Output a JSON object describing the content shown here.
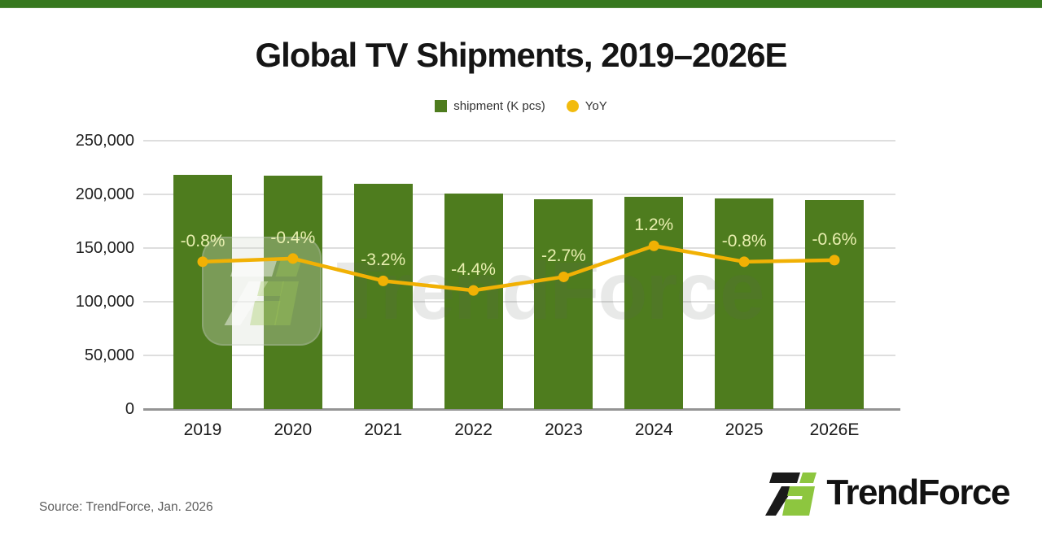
{
  "page": {
    "accent_color": "#37781f",
    "background": "#ffffff"
  },
  "title": "Global TV Shipments, 2019–2026E",
  "legend": [
    {
      "label": "shipment (K pcs)",
      "swatch": "square",
      "color": "#4e7c1e"
    },
    {
      "label": "YoY",
      "swatch": "circle",
      "color": "#f2bb0e"
    }
  ],
  "chart_data": {
    "type": "bar",
    "title": "Global TV Shipments, 2019–2026E",
    "categories": [
      "2019",
      "2020",
      "2021",
      "2022",
      "2023",
      "2024",
      "2025",
      "2026E"
    ],
    "series": [
      {
        "name": "shipment (K pcs)",
        "type": "bar",
        "color": "#4e7c1e",
        "values": [
          218000,
          217100,
          210100,
          200900,
          195500,
          197800,
          196200,
          195000
        ]
      },
      {
        "name": "YoY",
        "type": "line",
        "color": "#f1b104",
        "values": [
          -0.8,
          -0.4,
          -3.2,
          -4.4,
          -2.7,
          1.2,
          -0.8,
          -0.6
        ],
        "point_labels": [
          "-0.8%",
          "-0.4%",
          "-3.2%",
          "-4.4%",
          "-2.7%",
          "1.2%",
          "-0.8%",
          "-0.6%"
        ],
        "label_color": "#e9efb0"
      }
    ],
    "xlabel": "",
    "ylabel": "",
    "y_axis": {
      "min": 0,
      "max": 250000,
      "tick_step": 50000,
      "tick_labels": [
        "0",
        "50,000",
        "100,000",
        "150,000",
        "200,000",
        "250,000"
      ]
    },
    "grid": true,
    "legend_position": "top"
  },
  "watermark": {
    "text": "TrendForce"
  },
  "source": "Source: TrendForce, Jan. 2026",
  "logo": {
    "text": "TrendForce"
  }
}
